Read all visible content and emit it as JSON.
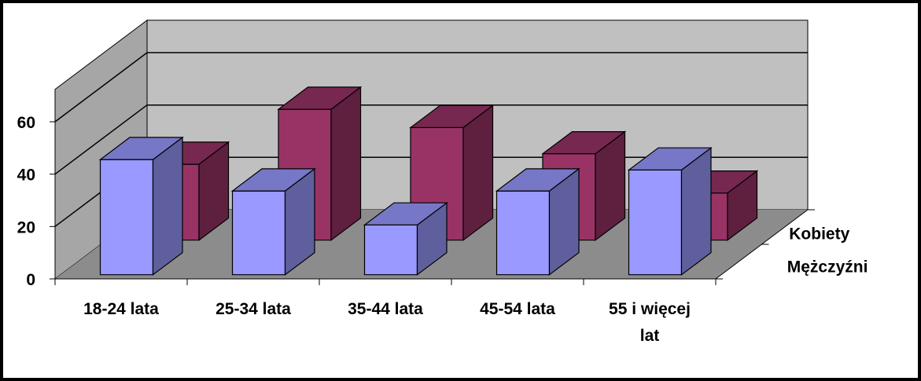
{
  "chart_data": {
    "type": "bar",
    "subtype": "3d-column",
    "categories": [
      "18-24 lata",
      "25-34 lata",
      "35-44 lata",
      "45-54 lata",
      "55 i więcej lat"
    ],
    "series": [
      {
        "name": "Mężczyźni",
        "values": [
          44,
          32,
          19,
          32,
          40
        ],
        "color": "#9999ff"
      },
      {
        "name": "Kobiety",
        "values": [
          29,
          50,
          43,
          33,
          18
        ],
        "color": "#993366"
      }
    ],
    "yticks": [
      0,
      20,
      40,
      60
    ],
    "ylim": [
      0,
      80
    ],
    "title": "",
    "xlabel": "",
    "ylabel": "",
    "grid": true,
    "legend": "none"
  }
}
